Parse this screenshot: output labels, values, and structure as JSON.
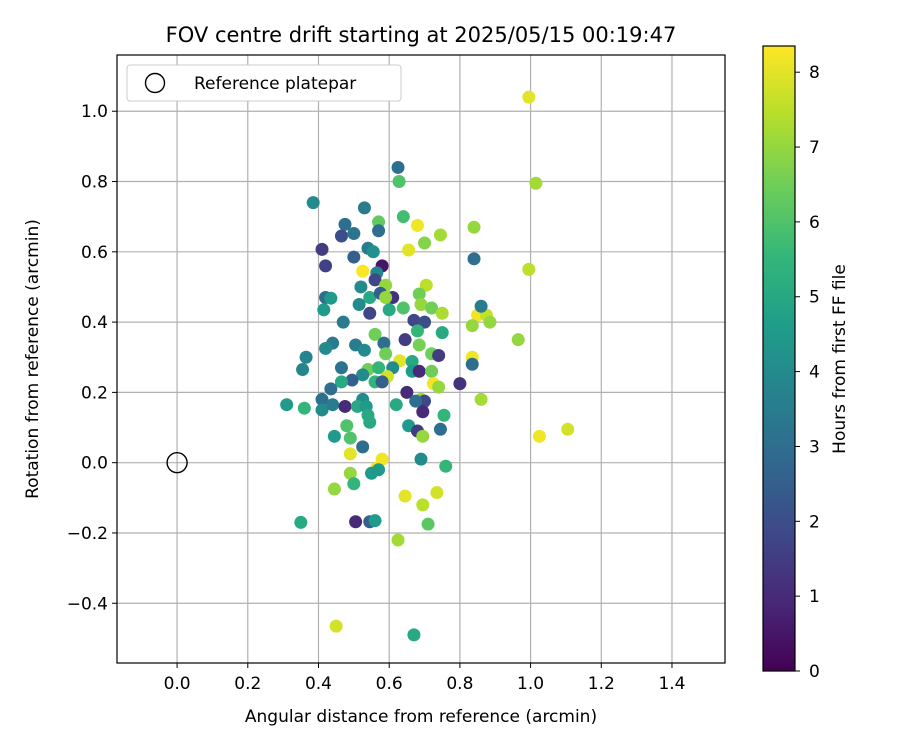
{
  "chart_data": {
    "type": "scatter",
    "title": "FOV centre drift starting at 2025/05/15 00:19:47",
    "xlabel": "Angular distance from reference (arcmin)",
    "ylabel": "Rotation from reference (arcmin)",
    "xlim": [
      -0.17,
      1.55
    ],
    "ylim": [
      -0.57,
      1.16
    ],
    "xticks": [
      0.0,
      0.2,
      0.4,
      0.6,
      0.8,
      1.0,
      1.2,
      1.4
    ],
    "xtick_labels": [
      "0.0",
      "0.2",
      "0.4",
      "0.6",
      "0.8",
      "1.0",
      "1.2",
      "1.4"
    ],
    "yticks": [
      -0.4,
      -0.2,
      0.0,
      0.2,
      0.4,
      0.6,
      0.8,
      1.0
    ],
    "ytick_labels": [
      "−0.4",
      "−0.2",
      "0.0",
      "0.2",
      "0.4",
      "0.6",
      "0.8",
      "1.0"
    ],
    "grid": true,
    "legend": {
      "position": "top-left",
      "entries": [
        "Reference platepar"
      ]
    },
    "reference_point": {
      "x": 0.0,
      "y": 0.0
    },
    "colorbar": {
      "label": "Hours from first FF file",
      "min": 0,
      "max": 8.35,
      "ticks": [
        0,
        1,
        2,
        3,
        4,
        5,
        6,
        7,
        8
      ],
      "tick_labels": [
        "0",
        "1",
        "2",
        "3",
        "4",
        "5",
        "6",
        "7",
        "8"
      ],
      "colormap": "viridis",
      "colors": [
        "#440154",
        "#482878",
        "#3e4989",
        "#31688e",
        "#26828e",
        "#1f9e89",
        "#35b779",
        "#6ece58",
        "#b5de2b",
        "#fde725"
      ]
    },
    "series": [
      {
        "points": [
          {
            "x": 0.995,
            "y": 1.04,
            "c": 8.0
          },
          {
            "x": 1.015,
            "y": 0.795,
            "c": 7.2
          },
          {
            "x": 0.625,
            "y": 0.84,
            "c": 3.0
          },
          {
            "x": 0.628,
            "y": 0.8,
            "c": 6.0
          },
          {
            "x": 0.385,
            "y": 0.74,
            "c": 4.0
          },
          {
            "x": 0.53,
            "y": 0.725,
            "c": 3.5
          },
          {
            "x": 0.64,
            "y": 0.7,
            "c": 5.8
          },
          {
            "x": 0.68,
            "y": 0.675,
            "c": 8.2
          },
          {
            "x": 0.57,
            "y": 0.685,
            "c": 6.3
          },
          {
            "x": 0.475,
            "y": 0.678,
            "c": 3.0
          },
          {
            "x": 0.465,
            "y": 0.645,
            "c": 2.0
          },
          {
            "x": 0.5,
            "y": 0.652,
            "c": 3.2
          },
          {
            "x": 0.57,
            "y": 0.66,
            "c": 3.0
          },
          {
            "x": 0.84,
            "y": 0.67,
            "c": 7.0
          },
          {
            "x": 0.745,
            "y": 0.648,
            "c": 7.2
          },
          {
            "x": 0.7,
            "y": 0.625,
            "c": 6.8
          },
          {
            "x": 0.655,
            "y": 0.605,
            "c": 8.0
          },
          {
            "x": 0.41,
            "y": 0.607,
            "c": 1.5
          },
          {
            "x": 0.54,
            "y": 0.61,
            "c": 3.5
          },
          {
            "x": 0.555,
            "y": 0.6,
            "c": 4.2
          },
          {
            "x": 0.5,
            "y": 0.585,
            "c": 2.5
          },
          {
            "x": 0.42,
            "y": 0.56,
            "c": 1.6
          },
          {
            "x": 0.58,
            "y": 0.56,
            "c": 0.5
          },
          {
            "x": 0.525,
            "y": 0.545,
            "c": 8.3
          },
          {
            "x": 0.565,
            "y": 0.54,
            "c": 3.8
          },
          {
            "x": 0.56,
            "y": 0.52,
            "c": 1.8
          },
          {
            "x": 0.52,
            "y": 0.5,
            "c": 4.0
          },
          {
            "x": 0.59,
            "y": 0.505,
            "c": 7.0
          },
          {
            "x": 0.705,
            "y": 0.505,
            "c": 7.5
          },
          {
            "x": 0.84,
            "y": 0.58,
            "c": 3.0
          },
          {
            "x": 0.995,
            "y": 0.55,
            "c": 7.5
          },
          {
            "x": 0.42,
            "y": 0.47,
            "c": 3.0
          },
          {
            "x": 0.435,
            "y": 0.468,
            "c": 4.5
          },
          {
            "x": 0.545,
            "y": 0.47,
            "c": 5.0
          },
          {
            "x": 0.575,
            "y": 0.482,
            "c": 2.5
          },
          {
            "x": 0.61,
            "y": 0.47,
            "c": 1.2
          },
          {
            "x": 0.59,
            "y": 0.47,
            "c": 7.0
          },
          {
            "x": 0.685,
            "y": 0.48,
            "c": 6.5
          },
          {
            "x": 0.69,
            "y": 0.45,
            "c": 7.0
          },
          {
            "x": 0.72,
            "y": 0.44,
            "c": 6.5
          },
          {
            "x": 0.64,
            "y": 0.44,
            "c": 6.0
          },
          {
            "x": 0.415,
            "y": 0.435,
            "c": 4.5
          },
          {
            "x": 0.515,
            "y": 0.45,
            "c": 4.0
          },
          {
            "x": 0.6,
            "y": 0.435,
            "c": 5.0
          },
          {
            "x": 0.545,
            "y": 0.425,
            "c": 1.8
          },
          {
            "x": 0.75,
            "y": 0.425,
            "c": 7.3
          },
          {
            "x": 0.85,
            "y": 0.42,
            "c": 8.2
          },
          {
            "x": 0.875,
            "y": 0.42,
            "c": 7.6
          },
          {
            "x": 0.86,
            "y": 0.445,
            "c": 3.5
          },
          {
            "x": 0.885,
            "y": 0.4,
            "c": 7.0
          },
          {
            "x": 0.835,
            "y": 0.39,
            "c": 7.0
          },
          {
            "x": 0.47,
            "y": 0.4,
            "c": 3.5
          },
          {
            "x": 0.67,
            "y": 0.405,
            "c": 1.8
          },
          {
            "x": 0.7,
            "y": 0.4,
            "c": 2.0
          },
          {
            "x": 0.68,
            "y": 0.375,
            "c": 5.5
          },
          {
            "x": 0.75,
            "y": 0.37,
            "c": 5.0
          },
          {
            "x": 0.56,
            "y": 0.365,
            "c": 6.5
          },
          {
            "x": 0.645,
            "y": 0.35,
            "c": 1.5
          },
          {
            "x": 0.965,
            "y": 0.35,
            "c": 7.0
          },
          {
            "x": 0.44,
            "y": 0.34,
            "c": 3.5
          },
          {
            "x": 0.505,
            "y": 0.335,
            "c": 3.5
          },
          {
            "x": 0.585,
            "y": 0.34,
            "c": 3.0
          },
          {
            "x": 0.685,
            "y": 0.335,
            "c": 6.6
          },
          {
            "x": 0.42,
            "y": 0.325,
            "c": 4.0
          },
          {
            "x": 0.53,
            "y": 0.32,
            "c": 4.0
          },
          {
            "x": 0.59,
            "y": 0.31,
            "c": 6.5
          },
          {
            "x": 0.72,
            "y": 0.31,
            "c": 6.5
          },
          {
            "x": 0.74,
            "y": 0.305,
            "c": 1.5
          },
          {
            "x": 0.835,
            "y": 0.3,
            "c": 8.2
          },
          {
            "x": 0.365,
            "y": 0.3,
            "c": 3.8
          },
          {
            "x": 0.835,
            "y": 0.28,
            "c": 3.0
          },
          {
            "x": 0.63,
            "y": 0.29,
            "c": 8.0
          },
          {
            "x": 0.665,
            "y": 0.288,
            "c": 5.0
          },
          {
            "x": 0.355,
            "y": 0.265,
            "c": 3.8
          },
          {
            "x": 0.465,
            "y": 0.27,
            "c": 3.2
          },
          {
            "x": 0.54,
            "y": 0.265,
            "c": 6.5
          },
          {
            "x": 0.57,
            "y": 0.27,
            "c": 5.5
          },
          {
            "x": 0.61,
            "y": 0.27,
            "c": 4.0
          },
          {
            "x": 0.665,
            "y": 0.26,
            "c": 4.5
          },
          {
            "x": 0.685,
            "y": 0.26,
            "c": 1.0
          },
          {
            "x": 0.72,
            "y": 0.26,
            "c": 6.5
          },
          {
            "x": 0.525,
            "y": 0.25,
            "c": 4.0
          },
          {
            "x": 0.595,
            "y": 0.245,
            "c": 7.8
          },
          {
            "x": 0.495,
            "y": 0.235,
            "c": 2.5
          },
          {
            "x": 0.465,
            "y": 0.23,
            "c": 5.0
          },
          {
            "x": 0.56,
            "y": 0.23,
            "c": 5.5
          },
          {
            "x": 0.58,
            "y": 0.23,
            "c": 2.5
          },
          {
            "x": 0.725,
            "y": 0.225,
            "c": 8.2
          },
          {
            "x": 0.74,
            "y": 0.215,
            "c": 7.0
          },
          {
            "x": 0.8,
            "y": 0.225,
            "c": 1.2
          },
          {
            "x": 0.435,
            "y": 0.21,
            "c": 3.0
          },
          {
            "x": 0.65,
            "y": 0.2,
            "c": 1.0
          },
          {
            "x": 0.41,
            "y": 0.18,
            "c": 3.0
          },
          {
            "x": 0.525,
            "y": 0.18,
            "c": 4.0
          },
          {
            "x": 0.69,
            "y": 0.18,
            "c": 7.0
          },
          {
            "x": 0.7,
            "y": 0.175,
            "c": 1.8
          },
          {
            "x": 0.86,
            "y": 0.18,
            "c": 7.2
          },
          {
            "x": 0.31,
            "y": 0.165,
            "c": 4.5
          },
          {
            "x": 0.41,
            "y": 0.15,
            "c": 4.0
          },
          {
            "x": 0.44,
            "y": 0.165,
            "c": 3.5
          },
          {
            "x": 0.475,
            "y": 0.16,
            "c": 1.0
          },
          {
            "x": 0.51,
            "y": 0.16,
            "c": 5.0
          },
          {
            "x": 0.535,
            "y": 0.16,
            "c": 4.5
          },
          {
            "x": 0.62,
            "y": 0.165,
            "c": 5.0
          },
          {
            "x": 0.675,
            "y": 0.175,
            "c": 3.0
          },
          {
            "x": 0.36,
            "y": 0.155,
            "c": 5.5
          },
          {
            "x": 0.54,
            "y": 0.135,
            "c": 5.0
          },
          {
            "x": 0.695,
            "y": 0.145,
            "c": 1.0
          },
          {
            "x": 0.755,
            "y": 0.135,
            "c": 5.5
          },
          {
            "x": 0.545,
            "y": 0.115,
            "c": 5.0
          },
          {
            "x": 0.48,
            "y": 0.105,
            "c": 6.0
          },
          {
            "x": 0.655,
            "y": 0.105,
            "c": 4.5
          },
          {
            "x": 0.68,
            "y": 0.09,
            "c": 1.5
          },
          {
            "x": 0.745,
            "y": 0.095,
            "c": 3.0
          },
          {
            "x": 1.105,
            "y": 0.095,
            "c": 7.8
          },
          {
            "x": 1.025,
            "y": 0.075,
            "c": 8.2
          },
          {
            "x": 0.445,
            "y": 0.075,
            "c": 4.5
          },
          {
            "x": 0.49,
            "y": 0.07,
            "c": 6.0
          },
          {
            "x": 0.695,
            "y": 0.075,
            "c": 7.0
          },
          {
            "x": 0.525,
            "y": 0.045,
            "c": 3.0
          },
          {
            "x": 0.49,
            "y": 0.025,
            "c": 8.0
          },
          {
            "x": 0.58,
            "y": 0.01,
            "c": 8.2
          },
          {
            "x": 0.69,
            "y": 0.01,
            "c": 4.0
          },
          {
            "x": 0.76,
            "y": -0.01,
            "c": 5.5
          },
          {
            "x": 0.565,
            "y": -0.015,
            "c": 8.2
          },
          {
            "x": 0.57,
            "y": -0.02,
            "c": 4.5
          },
          {
            "x": 0.49,
            "y": -0.03,
            "c": 7.0
          },
          {
            "x": 0.55,
            "y": -0.03,
            "c": 4.5
          },
          {
            "x": 0.5,
            "y": -0.06,
            "c": 5.5
          },
          {
            "x": 0.445,
            "y": -0.075,
            "c": 7.0
          },
          {
            "x": 0.645,
            "y": -0.095,
            "c": 8.0
          },
          {
            "x": 0.735,
            "y": -0.085,
            "c": 7.8
          },
          {
            "x": 0.695,
            "y": -0.12,
            "c": 7.5
          },
          {
            "x": 0.35,
            "y": -0.17,
            "c": 5.0
          },
          {
            "x": 0.505,
            "y": -0.168,
            "c": 1.0
          },
          {
            "x": 0.545,
            "y": -0.168,
            "c": 2.5
          },
          {
            "x": 0.56,
            "y": -0.165,
            "c": 4.5
          },
          {
            "x": 0.71,
            "y": -0.175,
            "c": 6.2
          },
          {
            "x": 0.625,
            "y": -0.22,
            "c": 7.2
          },
          {
            "x": 0.45,
            "y": -0.465,
            "c": 7.8
          },
          {
            "x": 0.67,
            "y": -0.49,
            "c": 5.0
          }
        ]
      }
    ]
  }
}
